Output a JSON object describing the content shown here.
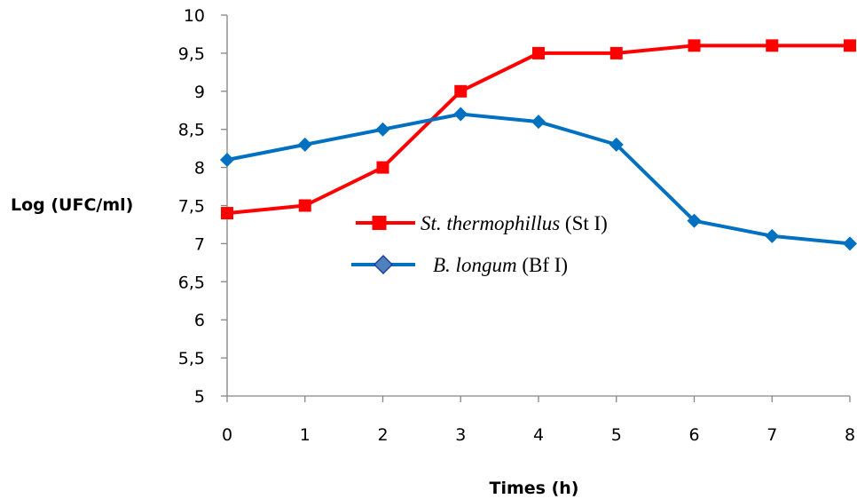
{
  "chart_data": {
    "type": "line",
    "title": "",
    "xlabel": "Times (h)",
    "ylabel": "Log (UFC/ml)",
    "x": [
      0,
      1,
      2,
      3,
      4,
      5,
      6,
      7,
      8
    ],
    "x_tick_labels": [
      "0",
      "1",
      "2",
      "3",
      "4",
      "5",
      "6",
      "7",
      "8"
    ],
    "xlim": [
      0,
      8
    ],
    "ylim": [
      5,
      10
    ],
    "y_ticks": [
      5,
      5.5,
      6,
      6.5,
      7,
      7.5,
      8,
      8.5,
      9,
      9.5,
      10
    ],
    "y_tick_labels": [
      "5",
      "5,5",
      "6",
      "6,5",
      "7",
      "7,5",
      "8",
      "8,5",
      "9",
      "9,5",
      "10"
    ],
    "grid": false,
    "legend_position": "center",
    "series": [
      {
        "name_italic": "St. thermophillus",
        "name_suffix": " (St I)",
        "color": "#ff0000",
        "marker": "square",
        "values": [
          7.4,
          7.5,
          8.0,
          9.0,
          9.5,
          9.5,
          9.6,
          9.6,
          9.6
        ]
      },
      {
        "name_italic": "B. longum",
        "name_suffix": " (Bf I)",
        "color": "#0070c0",
        "marker": "diamond",
        "values": [
          8.1,
          8.3,
          8.5,
          8.7,
          8.6,
          8.3,
          7.3,
          7.1,
          7.0
        ]
      }
    ]
  }
}
